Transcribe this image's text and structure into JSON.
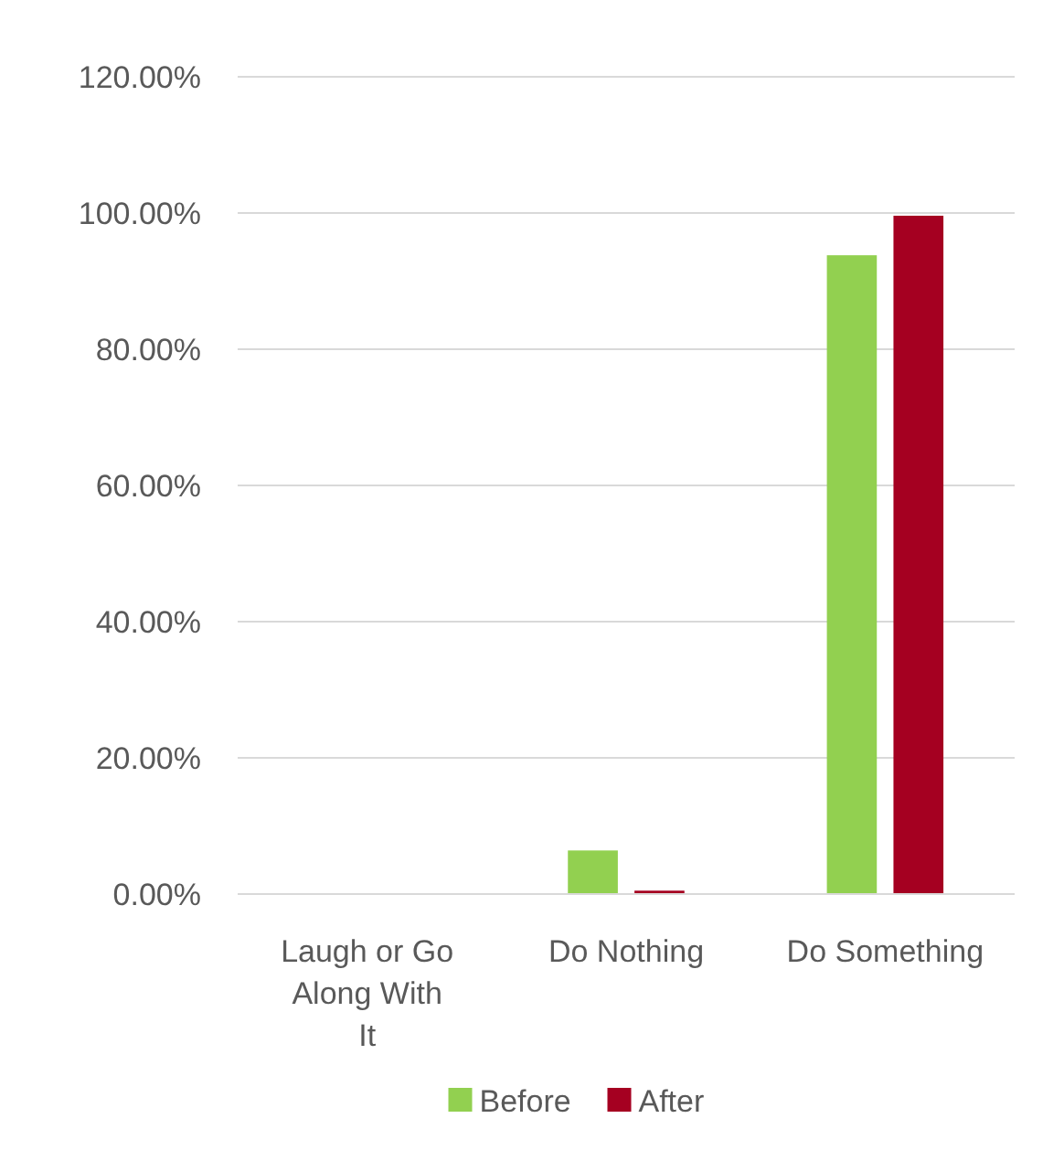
{
  "chart_data": {
    "type": "bar",
    "categories": [
      "Laugh or Go Along With It",
      "Do Nothing",
      "Do Something"
    ],
    "series": [
      {
        "name": "Before",
        "color": "#92d050",
        "values": [
          0,
          6.4,
          93.8
        ]
      },
      {
        "name": "After",
        "color": "#a50021",
        "values": [
          0,
          0.5,
          99.6
        ]
      }
    ],
    "ylim": [
      0,
      120
    ],
    "yticks": [
      {
        "value": 0,
        "label": "0.00%"
      },
      {
        "value": 20,
        "label": "20.00%"
      },
      {
        "value": 40,
        "label": "40.00%"
      },
      {
        "value": 60,
        "label": "60.00%"
      },
      {
        "value": 80,
        "label": "80.00%"
      },
      {
        "value": 100,
        "label": "100.00%"
      },
      {
        "value": 120,
        "label": "120.00%"
      }
    ],
    "grid": "y",
    "legend": "bottom"
  }
}
